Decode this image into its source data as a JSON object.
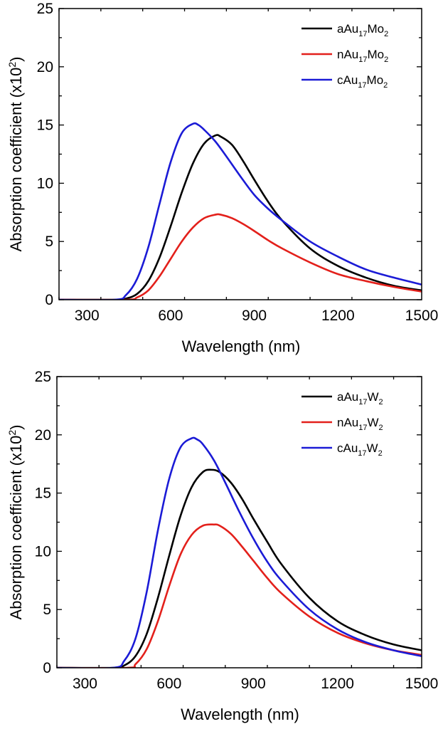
{
  "chart_data": [
    {
      "type": "line",
      "xlabel": "Wavelength (nm)",
      "ylabel": {
        "main": "Absorption coefficient (x10",
        "sup": "2",
        "end": ")"
      },
      "xlim": [
        200,
        1500
      ],
      "ylim": [
        0,
        25
      ],
      "xticks": [
        300,
        600,
        900,
        1200,
        1500
      ],
      "xtick_labels": [
        "300",
        "600",
        "900",
        "1200",
        "1500"
      ],
      "yticks": [
        0,
        5,
        10,
        15,
        20,
        25
      ],
      "ytick_labels": [
        "0",
        "5",
        "10",
        "15",
        "20",
        "25"
      ],
      "grid": false,
      "legend_position": "top-right",
      "series": [
        {
          "name": {
            "pre": "aAu",
            "sub1": "17",
            "mid": "Mo",
            "sub2": "2"
          },
          "color": "#000000",
          "x": [
            200,
            400,
            440,
            480,
            520,
            560,
            600,
            640,
            680,
            720,
            760,
            780,
            820,
            860,
            900,
            950,
            1000,
            1100,
            1200,
            1300,
            1400,
            1500
          ],
          "y": [
            0,
            0,
            0.1,
            0.5,
            1.6,
            3.6,
            6.3,
            9.2,
            11.7,
            13.4,
            14.1,
            14.0,
            13.3,
            11.9,
            10.3,
            8.4,
            6.8,
            4.4,
            2.9,
            1.9,
            1.2,
            0.8
          ]
        },
        {
          "name": {
            "pre": "nAu",
            "sub1": "17",
            "mid": "Mo",
            "sub2": "2"
          },
          "color": "#e3201b",
          "x": [
            200,
            440,
            480,
            520,
            560,
            600,
            640,
            680,
            720,
            760,
            780,
            820,
            860,
            900,
            950,
            1000,
            1100,
            1200,
            1300,
            1400,
            1500
          ],
          "y": [
            0,
            0,
            0.2,
            0.8,
            2.0,
            3.5,
            5.0,
            6.2,
            7.0,
            7.3,
            7.3,
            7.0,
            6.5,
            5.9,
            5.1,
            4.4,
            3.2,
            2.2,
            1.6,
            1.1,
            0.7
          ]
        },
        {
          "name": {
            "pre": "cAu",
            "sub1": "17",
            "mid": "Mo",
            "sub2": "2"
          },
          "color": "#1b1bd6",
          "x": [
            200,
            400,
            440,
            480,
            520,
            560,
            600,
            640,
            680,
            700,
            720,
            760,
            800,
            850,
            900,
            950,
            1000,
            1100,
            1200,
            1300,
            1400,
            1500
          ],
          "y": [
            0,
            0,
            0.4,
            1.8,
            4.5,
            8.2,
            11.8,
            14.3,
            15.1,
            15.0,
            14.6,
            13.6,
            12.3,
            10.6,
            9.0,
            7.8,
            6.8,
            5.0,
            3.7,
            2.6,
            1.9,
            1.3
          ]
        }
      ]
    },
    {
      "type": "line",
      "xlabel": "Wavelength (nm)",
      "ylabel": {
        "main": "Absorption coefficient (x10",
        "sup": "2",
        "end": ")"
      },
      "xlim": [
        200,
        1500
      ],
      "ylim": [
        0,
        25
      ],
      "xticks": [
        300,
        600,
        900,
        1200,
        1500
      ],
      "xtick_labels": [
        "300",
        "600",
        "900",
        "1200",
        "1500"
      ],
      "yticks": [
        0,
        5,
        10,
        15,
        20,
        25
      ],
      "ytick_labels": [
        "0",
        "5",
        "10",
        "15",
        "20",
        "25"
      ],
      "grid": false,
      "legend_position": "top-right",
      "series": [
        {
          "name": {
            "pre": "aAu",
            "sub1": "17",
            "mid": "W",
            "sub2": "2"
          },
          "color": "#000000",
          "x": [
            200,
            400,
            440,
            480,
            520,
            560,
            600,
            640,
            680,
            720,
            750,
            780,
            820,
            860,
            900,
            950,
            1000,
            1100,
            1200,
            1300,
            1400,
            1500
          ],
          "y": [
            0,
            0,
            0.2,
            1.0,
            2.9,
            6.0,
            9.6,
            13.0,
            15.5,
            16.8,
            17.0,
            16.8,
            15.9,
            14.5,
            12.8,
            10.8,
            8.9,
            6.0,
            4.0,
            2.8,
            2.0,
            1.5
          ]
        },
        {
          "name": {
            "pre": "nAu",
            "sub1": "17",
            "mid": "W",
            "sub2": "2"
          },
          "color": "#e3201b",
          "x": [
            200,
            450,
            480,
            520,
            560,
            600,
            640,
            680,
            720,
            760,
            780,
            820,
            860,
            900,
            950,
            1000,
            1100,
            1200,
            1300,
            1400,
            1500
          ],
          "y": [
            0,
            0,
            0.3,
            1.6,
            4.0,
            7.0,
            9.7,
            11.4,
            12.2,
            12.3,
            12.2,
            11.5,
            10.4,
            9.2,
            7.7,
            6.4,
            4.4,
            3.0,
            2.1,
            1.5,
            1.1
          ]
        },
        {
          "name": {
            "pre": "cAu",
            "sub1": "17",
            "mid": "W",
            "sub2": "2"
          },
          "color": "#1b1bd6",
          "x": [
            200,
            400,
            440,
            480,
            520,
            560,
            600,
            640,
            680,
            700,
            720,
            760,
            800,
            850,
            900,
            950,
            1000,
            1100,
            1200,
            1300,
            1400,
            1500
          ],
          "y": [
            0,
            0,
            0.6,
            2.5,
            6.5,
            11.8,
            16.2,
            18.9,
            19.7,
            19.6,
            19.2,
            17.8,
            15.9,
            13.4,
            11.1,
            9.1,
            7.5,
            5.0,
            3.3,
            2.2,
            1.5,
            1.0
          ]
        }
      ]
    }
  ]
}
